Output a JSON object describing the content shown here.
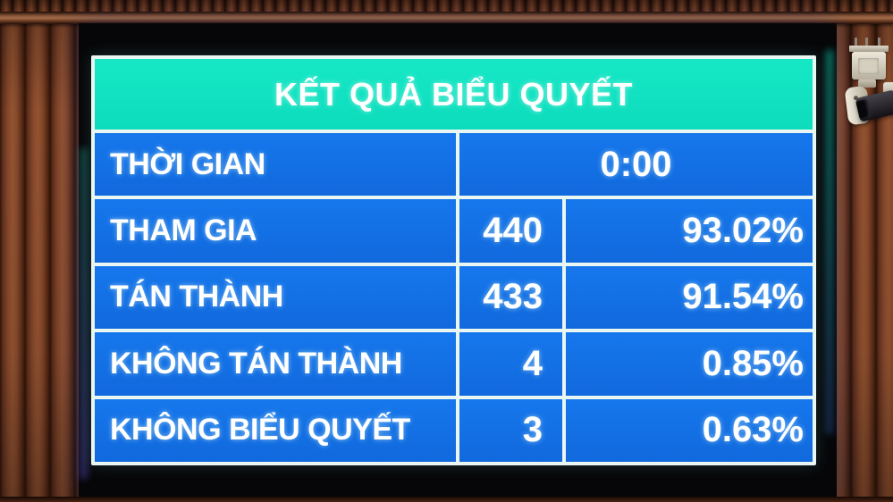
{
  "board": {
    "title": "KẾT QUẢ BIỂU QUYẾT",
    "time_row": {
      "label": "THỜI GIAN",
      "value": "0:00"
    },
    "rows": [
      {
        "label": "THAM GIA",
        "count": "440",
        "percent": "93.02%"
      },
      {
        "label": "TÁN THÀNH",
        "count": "433",
        "percent": "91.54%"
      },
      {
        "label": "KHÔNG TÁN THÀNH",
        "count": "4",
        "percent": "0.85%"
      },
      {
        "label": "KHÔNG BIỂU QUYẾT",
        "count": "3",
        "percent": "0.63%"
      }
    ],
    "colors": {
      "header_bg": "#11e3c2",
      "cell_bg": "#1470e8",
      "grid_line": "#e9f6f1",
      "text": "#ffffff"
    }
  },
  "scene": {
    "objects": [
      "wood-slat-wall",
      "led-results-display",
      "cctv-camera"
    ]
  }
}
